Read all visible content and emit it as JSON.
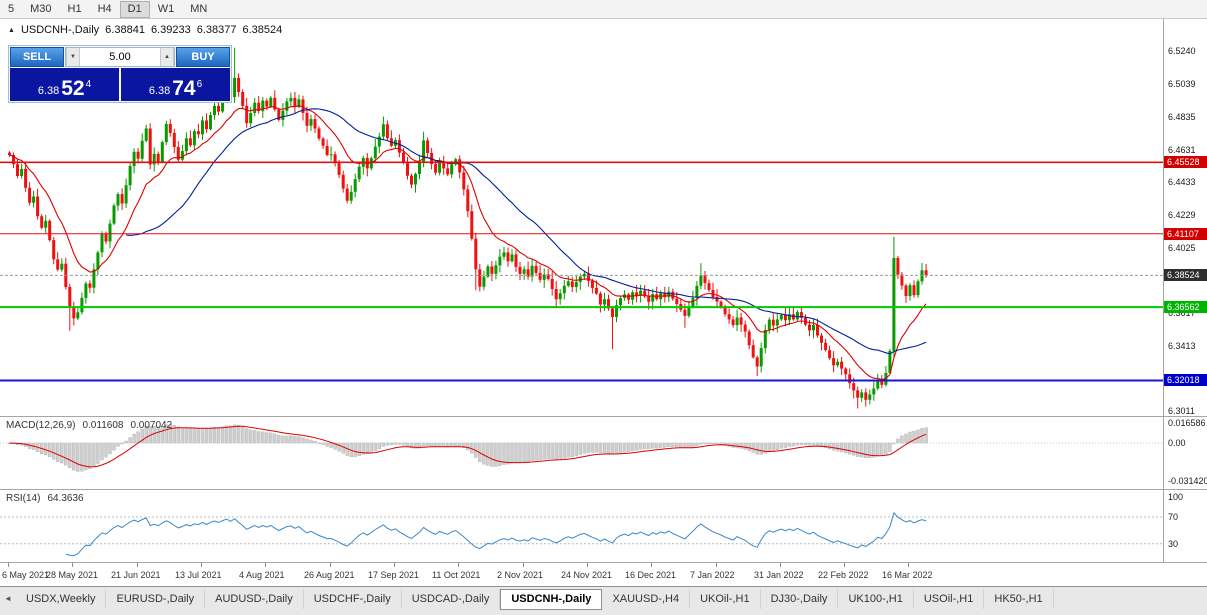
{
  "toolbar": {
    "timeframes": [
      "5",
      "M30",
      "H1",
      "H4",
      "D1",
      "W1",
      "MN"
    ],
    "active": "D1"
  },
  "chart": {
    "title": {
      "symbol_period": "USDCNH-,Daily",
      "open": "6.38841",
      "high": "6.39233",
      "low": "6.38377",
      "close": "6.38524"
    },
    "trade_panel": {
      "sell_label": "SELL",
      "buy_label": "BUY",
      "volume": "5.00",
      "sell_price": {
        "prefix": "6.38",
        "big": "52",
        "sup": "4"
      },
      "buy_price": {
        "prefix": "6.38",
        "big": "74",
        "sup": "6"
      }
    },
    "price_axis_labels": [
      "6.5240",
      "6.5039",
      "6.4835",
      "6.4631",
      "6.4433",
      "6.4229",
      "6.4025",
      "6.3617",
      "6.3413",
      "6.3011"
    ],
    "levels": [
      {
        "price": 6.45528,
        "label": "6.45528",
        "color": "#e01010",
        "badge": "#d40000",
        "width": 1.6
      },
      {
        "price": 6.41107,
        "label": "6.41107",
        "color": "#e01010",
        "badge": "#d40000",
        "width": 1
      },
      {
        "price": 6.36562,
        "label": "6.36562",
        "color": "#00ca00",
        "badge": "#00b400",
        "width": 2
      },
      {
        "price": 6.32018,
        "label": "6.32018",
        "color": "#1414dc",
        "badge": "#0000cc",
        "width": 2
      }
    ],
    "current_price": {
      "value": 6.38524,
      "label": "6.38524",
      "badge": "#2e2e2e"
    },
    "dates": [
      "6 May 2021",
      "28 May 2021",
      "21 Jun 2021",
      "13 Jul 2021",
      "4 Aug 2021",
      "26 Aug 2021",
      "17 Sep 2021",
      "11 Oct 2021",
      "2 Nov 2021",
      "24 Nov 2021",
      "16 Dec 2021",
      "7 Jan 2022",
      "31 Jan 2022",
      "22 Feb 2022",
      "16 Mar 2022"
    ]
  },
  "indicators": {
    "macd": {
      "label": "MACD(12,26,9)",
      "value_main": "0.011608",
      "value_signal": "0.007042",
      "axis": [
        "0.016586",
        "0.00",
        "-0.031420"
      ],
      "fast": 12,
      "slow": 26,
      "signal": 9
    },
    "rsi": {
      "label": "RSI(14)",
      "value": "64.3636",
      "axis": [
        "100",
        "70",
        "30"
      ],
      "period": 14,
      "levels": [
        70,
        30
      ]
    }
  },
  "tabs": {
    "items": [
      "USDX,Weekly",
      "EURUSD-,Daily",
      "AUDUSD-,Daily",
      "USDCHF-,Daily",
      "USDCAD-,Daily",
      "USDCNH-,Daily",
      "XAUUSD-,H4",
      "UKOil-,H1",
      "DJ30-,Daily",
      "UK100-,H1",
      "USOil-,H1",
      "HK50-,H1"
    ],
    "active": "USDCNH-,Daily"
  },
  "chart_data": {
    "type": "candlestick",
    "symbol": "USDCNH",
    "timeframe": "Daily",
    "bar_count": 229,
    "ylim": [
      6.2975,
      6.544
    ],
    "colors": {
      "up": "#089b00",
      "down": "#f01010",
      "macd_hist": "#cfcfcf",
      "macd_hist_border": "#b2b2b2",
      "macd_signal": "#dd0000",
      "rsi": "#3a87c8"
    },
    "ma": [
      {
        "type": "ema",
        "period": 13,
        "color": "#dd0000"
      },
      {
        "type": "sma",
        "period": 30,
        "color": "#001f9e"
      }
    ],
    "closes": [
      6.4598,
      6.4541,
      6.4468,
      6.4512,
      6.4395,
      6.4302,
      6.4341,
      6.4219,
      6.4148,
      6.419,
      6.4071,
      6.3952,
      6.3888,
      6.3925,
      6.3781,
      6.3659,
      6.3586,
      6.3624,
      6.3713,
      6.3802,
      6.3776,
      6.389,
      6.3995,
      6.4108,
      6.4062,
      6.4173,
      6.4285,
      6.4356,
      6.4298,
      6.4411,
      6.453,
      6.4618,
      6.4575,
      6.4686,
      6.4762,
      6.454,
      6.4605,
      6.4558,
      6.4678,
      6.479,
      6.4735,
      6.4648,
      6.4569,
      6.4622,
      6.4701,
      6.4658,
      6.4745,
      6.4726,
      6.4812,
      6.4758,
      6.4845,
      6.4902,
      6.4867,
      6.494,
      6.5012,
      6.4956,
      6.5075,
      6.4988,
      6.4902,
      6.4795,
      6.4858,
      6.4922,
      6.487,
      6.4935,
      6.4898,
      6.4952,
      6.488,
      6.4815,
      6.4872,
      6.493,
      6.4951,
      6.4895,
      6.4942,
      6.4858,
      6.4779,
      6.482,
      6.4762,
      6.47,
      6.4655,
      6.4598,
      6.4602,
      6.4548,
      6.4475,
      6.439,
      6.4315,
      6.437,
      6.4448,
      6.4525,
      6.458,
      6.4515,
      6.4578,
      6.465,
      6.4712,
      6.4788,
      6.4702,
      6.4655,
      6.469,
      6.4612,
      6.4548,
      6.447,
      6.4415,
      6.448,
      6.4552,
      6.4688,
      6.461,
      6.4542,
      6.4488,
      6.456,
      6.4515,
      6.4478,
      6.454,
      6.4572,
      6.449,
      6.4385,
      6.425,
      6.408,
      6.389,
      6.3782,
      6.3845,
      6.3908,
      6.3862,
      6.3915,
      6.3968,
      6.3995,
      6.394,
      6.3982,
      6.3905,
      6.3862,
      6.389,
      6.3845,
      6.3912,
      6.3868,
      6.3825,
      6.3858,
      6.383,
      6.3768,
      6.3705,
      6.3742,
      6.3788,
      6.3815,
      6.378,
      6.3812,
      6.3845,
      6.3862,
      6.3818,
      6.3775,
      6.374,
      6.3672,
      6.3705,
      6.3648,
      6.3595,
      6.3668,
      6.3712,
      6.3735,
      6.3702,
      6.3748,
      6.3725,
      6.3758,
      6.3722,
      6.369,
      6.3736,
      6.3705,
      6.3742,
      6.3718,
      6.3752,
      6.3708,
      6.3675,
      6.364,
      6.3602,
      6.3655,
      6.3712,
      6.3788,
      6.3852,
      6.3805,
      6.3762,
      6.3718,
      6.369,
      6.3655,
      6.3612,
      6.358,
      6.3545,
      6.3592,
      6.3548,
      6.3505,
      6.342,
      6.3345,
      6.3288,
      6.3402,
      6.3515,
      6.3578,
      6.3542,
      6.358,
      6.3608,
      6.3575,
      6.3612,
      6.358,
      6.3625,
      6.359,
      6.3548,
      6.3512,
      6.3545,
      6.348,
      6.3435,
      6.339,
      6.334,
      6.3295,
      6.3318,
      6.3275,
      6.324,
      6.3185,
      6.314,
      6.3095,
      6.3128,
      6.3082,
      6.3115,
      6.3152,
      6.3205,
      6.3175,
      6.3248,
      6.3385,
      6.396,
      6.3858,
      6.379,
      6.3725,
      6.3792,
      6.373,
      6.3815,
      6.3884,
      6.3852
    ],
    "wick_overrides": {
      "15": {
        "l": 6.351
      },
      "56": {
        "h": 6.5262
      },
      "103": {
        "h": 6.4742
      },
      "116": {
        "l": 6.376
      },
      "150": {
        "l": 6.3395
      },
      "168": {
        "l": 6.3528
      },
      "172": {
        "h": 6.3928
      },
      "186": {
        "l": 6.3228
      },
      "211": {
        "l": 6.3028
      },
      "213": {
        "l": 6.304
      },
      "220": {
        "h": 6.4092
      },
      "228": {
        "h": 6.3923,
        "l": 6.3838
      }
    }
  }
}
